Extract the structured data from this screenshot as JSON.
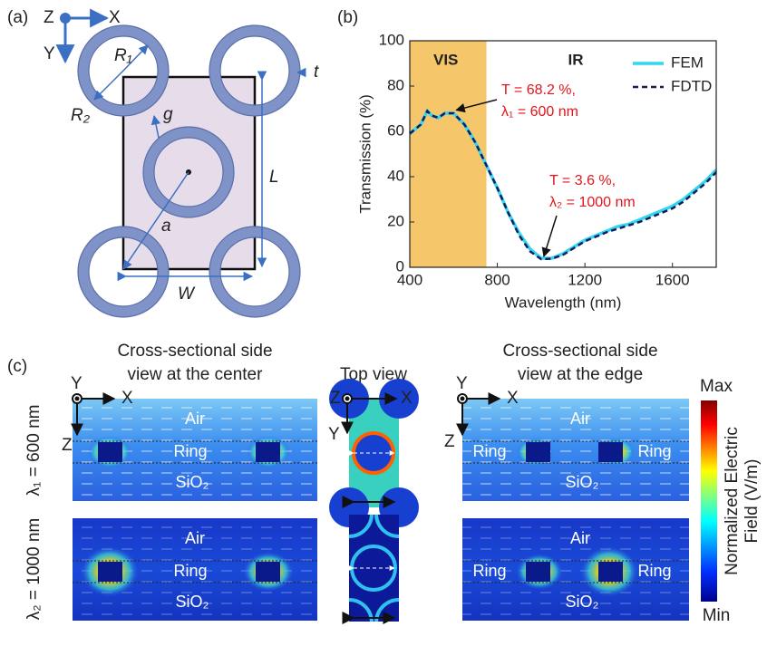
{
  "panel_a": {
    "label": "(a)",
    "axes": {
      "z": "Z",
      "x": "X",
      "y": "Y"
    },
    "symbols": {
      "r1": "R₁",
      "r2": "R₂",
      "t": "t",
      "g": "g",
      "l": "L",
      "a": "a",
      "w": "W"
    }
  },
  "chart_data": {
    "type": "line",
    "panel_label": "(b)",
    "xlabel": "Wavelength (nm)",
    "ylabel": "Transmission (%)",
    "xlim": [
      400,
      1800
    ],
    "xticks": [
      400,
      800,
      1200,
      1600
    ],
    "ylim": [
      0,
      100
    ],
    "yticks": [
      0,
      20,
      40,
      60,
      80,
      100
    ],
    "shaded_region": {
      "label": "VIS",
      "x": [
        400,
        750
      ],
      "color": "#f6c66a"
    },
    "ir_label": "IR",
    "legend": "upper right",
    "x": [
      400,
      450,
      480,
      500,
      530,
      560,
      600,
      650,
      700,
      750,
      800,
      850,
      900,
      950,
      1000,
      1050,
      1100,
      1150,
      1200,
      1250,
      1300,
      1350,
      1400,
      1450,
      1500,
      1550,
      1600,
      1650,
      1700,
      1750,
      1800
    ],
    "series": [
      {
        "name": "FEM",
        "color": "#33d6f0",
        "dash": false,
        "values": [
          59,
          63,
          69,
          67,
          66,
          68,
          68,
          63,
          55,
          45,
          35,
          24,
          15,
          8,
          4,
          4,
          6,
          9,
          12,
          14,
          16,
          18,
          19,
          21,
          23,
          25,
          27,
          30,
          34,
          38,
          43
        ]
      },
      {
        "name": "FDTD",
        "color": "#141c5c",
        "dash": true,
        "values": [
          59,
          63,
          69,
          67,
          66,
          68,
          68,
          63,
          55,
          45,
          35,
          24,
          14,
          7,
          3.6,
          3.8,
          5.5,
          8.5,
          11.5,
          13.5,
          15.5,
          17,
          18.5,
          20,
          22,
          24,
          26,
          29,
          33,
          37,
          42
        ]
      }
    ],
    "annotations": [
      {
        "lines": [
          "T = 68.2 %,",
          "λ₁ = 600 nm"
        ],
        "x": 600,
        "y": 68.2
      },
      {
        "lines": [
          "T = 3.6 %,",
          "λ₂ = 1000 nm"
        ],
        "x": 1000,
        "y": 3.6
      }
    ]
  },
  "panel_c": {
    "label": "(c)",
    "titles": {
      "center": [
        "Cross-sectional side",
        "view at the center"
      ],
      "top": "Top view",
      "edge": [
        "Cross-sectional side",
        "view at the edge"
      ]
    },
    "axes": {
      "x": "X",
      "y": "Y",
      "z": "Z"
    },
    "rows": [
      "λ₁ = 600 nm",
      "λ₂ = 1000 nm"
    ],
    "regions": {
      "air": "Air",
      "ring": "Ring",
      "substrate": "SiO₂"
    },
    "colorbar": {
      "max": "Max",
      "min": "Min",
      "title": [
        "Normalized Electric",
        "Field  (V/m)"
      ]
    }
  }
}
